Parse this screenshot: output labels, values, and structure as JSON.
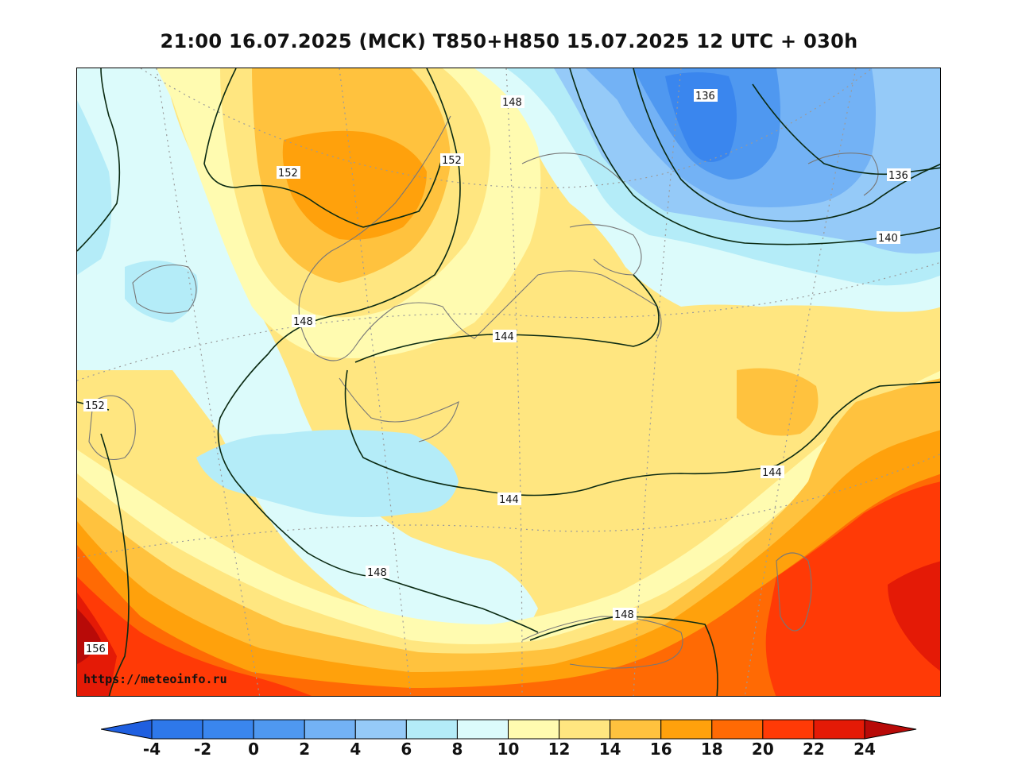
{
  "title": "21:00 16.07.2025 (МСК) T850+H850 15.07.2025 12 UTC + 030h",
  "credit": "https://meteoinfo.ru",
  "colors": {
    "lt_-4": "#1f5fe0",
    "-4": "#2e78ea",
    "-2": "#3a86ee",
    "0": "#4f98f0",
    "2": "#73b2f5",
    "4": "#95caf8",
    "6": "#b4ecf8",
    "8": "#dcfbfb",
    "10": "#fffbb0",
    "12": "#ffe680",
    "14": "#ffc23e",
    "16": "#ffa10c",
    "18": "#ff6a04",
    "20": "#ff3a06",
    "22": "#e41a06",
    "gt_24": "#b80a08",
    "contour": "#0a2a12",
    "coast": "#777777",
    "grid": "#9a9a9a"
  },
  "legend": {
    "ticks": [
      "-4",
      "-2",
      "0",
      "2",
      "4",
      "6",
      "8",
      "10",
      "12",
      "14",
      "16",
      "18",
      "20",
      "22",
      "24"
    ]
  },
  "contour_labels": [
    "136",
    "136",
    "140",
    "148",
    "152",
    "152",
    "148",
    "144",
    "152",
    "144",
    "144",
    "148",
    "148",
    "156"
  ]
}
